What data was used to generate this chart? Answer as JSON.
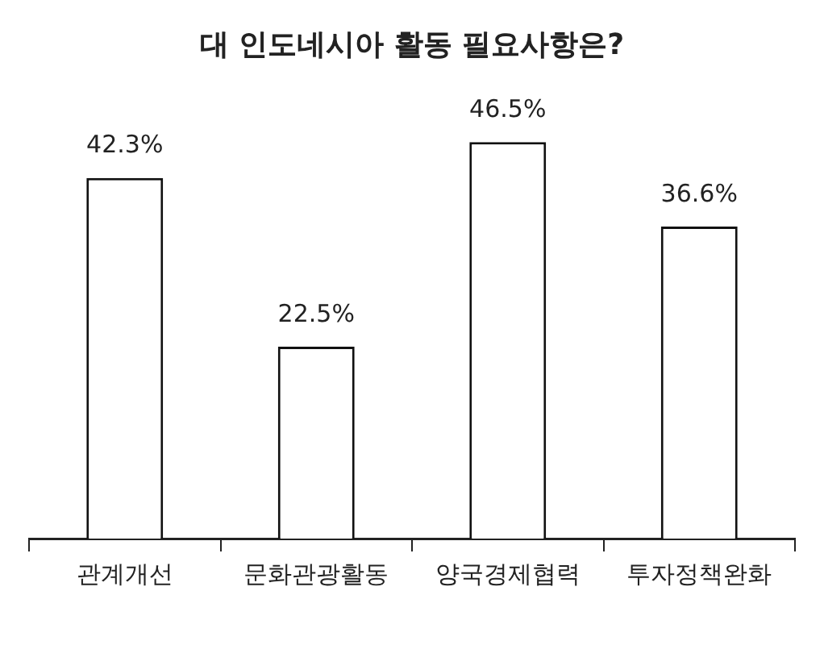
{
  "chart_data": {
    "type": "bar",
    "title": "대 인도네시아 활동 필요사항은?",
    "categories": [
      "관계개선",
      "문화관광활동",
      "양국경제협력",
      "투자정책완화"
    ],
    "values": [
      42.3,
      22.5,
      46.5,
      36.6
    ],
    "value_labels": [
      "42.3%",
      "22.5%",
      "46.5%",
      "36.6%"
    ],
    "color": "#ffffff",
    "grid": false,
    "legend": false
  }
}
